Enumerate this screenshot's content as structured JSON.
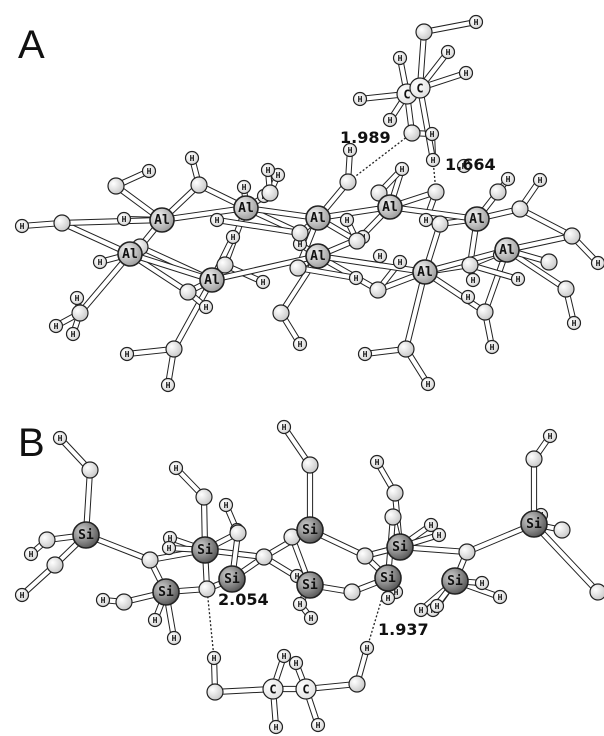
{
  "panels": [
    {
      "letter": "A"
    },
    {
      "letter": "B"
    }
  ],
  "distances": {
    "a1": "1.989",
    "a2": "1.664",
    "b1": "2.054",
    "b2": "1.937"
  },
  "element_labels": {
    "H": "H",
    "C": "C",
    "O": "",
    "Al": "Al",
    "Si": "Si"
  },
  "colors": {
    "H": "#f2f2f2",
    "O": "#e8e8e8",
    "C": "#ffffff",
    "Al": "#d0d0d0",
    "Si": "#8a8a8a",
    "outline": "#222222"
  }
}
